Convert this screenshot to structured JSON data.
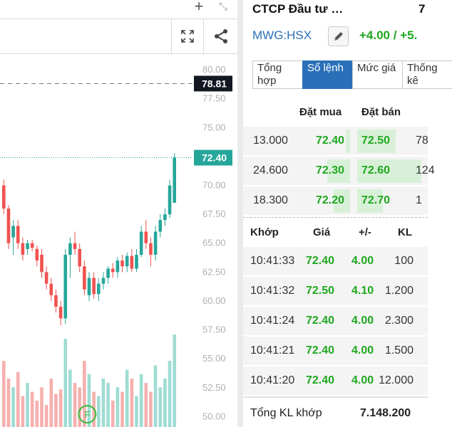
{
  "toolbar": {
    "add_icon": "plus-icon",
    "collapse_icon": "collapse-arrows-icon",
    "fullscreen_icon": "fullscreen-icon",
    "share_icon": "share-icon"
  },
  "chart_data": {
    "type": "candlestick",
    "y_ticks": [
      "80.00",
      "77.50",
      "75.00",
      "72.50",
      "70.00",
      "67.50",
      "65.00",
      "62.50",
      "60.00",
      "57.50",
      "55.00",
      "52.50",
      "50.00"
    ],
    "ylim": [
      49.1,
      81.3
    ],
    "reference_price": {
      "value": 78.81,
      "label": "78.81",
      "style": "dashed"
    },
    "last_price": {
      "value": 72.4,
      "label": "72.40",
      "style": "dotted",
      "color": "#26a69a"
    },
    "up_color": "#26a69a",
    "down_color": "#ef5350",
    "candles": [
      {
        "o": 70.0,
        "h": 70.5,
        "l": 67.5,
        "c": 68.0
      },
      {
        "o": 68.0,
        "h": 68.3,
        "l": 64.5,
        "c": 65.0
      },
      {
        "o": 65.5,
        "h": 67.0,
        "l": 64.0,
        "c": 66.5
      },
      {
        "o": 66.5,
        "h": 67.0,
        "l": 64.5,
        "c": 65.0
      },
      {
        "o": 65.0,
        "h": 65.5,
        "l": 63.5,
        "c": 64.0
      },
      {
        "o": 64.5,
        "h": 65.3,
        "l": 64.0,
        "c": 65.0
      },
      {
        "o": 65.0,
        "h": 65.3,
        "l": 64.3,
        "c": 64.6
      },
      {
        "o": 64.5,
        "h": 64.8,
        "l": 63.0,
        "c": 63.5
      },
      {
        "o": 64.0,
        "h": 64.5,
        "l": 62.0,
        "c": 62.5
      },
      {
        "o": 62.5,
        "h": 63.0,
        "l": 61.0,
        "c": 61.5
      },
      {
        "o": 61.5,
        "h": 62.0,
        "l": 60.0,
        "c": 60.5
      },
      {
        "o": 60.5,
        "h": 61.0,
        "l": 59.0,
        "c": 59.5
      },
      {
        "o": 59.5,
        "h": 60.0,
        "l": 57.9,
        "c": 58.5
      },
      {
        "o": 58.5,
        "h": 64.5,
        "l": 58.0,
        "c": 64.0
      },
      {
        "o": 64.0,
        "h": 65.5,
        "l": 62.0,
        "c": 65.0
      },
      {
        "o": 65.0,
        "h": 66.0,
        "l": 64.0,
        "c": 64.5
      },
      {
        "o": 64.5,
        "h": 65.0,
        "l": 62.5,
        "c": 63.0
      },
      {
        "o": 63.0,
        "h": 63.5,
        "l": 60.5,
        "c": 61.0
      },
      {
        "o": 60.5,
        "h": 62.5,
        "l": 60.0,
        "c": 62.0
      },
      {
        "o": 62.0,
        "h": 62.5,
        "l": 60.2,
        "c": 60.6
      },
      {
        "o": 60.6,
        "h": 62.0,
        "l": 60.0,
        "c": 61.5
      },
      {
        "o": 61.5,
        "h": 62.5,
        "l": 61.0,
        "c": 62.0
      },
      {
        "o": 62.0,
        "h": 63.0,
        "l": 61.5,
        "c": 62.8
      },
      {
        "o": 62.8,
        "h": 63.3,
        "l": 62.0,
        "c": 62.5
      },
      {
        "o": 62.5,
        "h": 63.8,
        "l": 62.0,
        "c": 63.5
      },
      {
        "o": 63.5,
        "h": 64.0,
        "l": 62.5,
        "c": 63.0
      },
      {
        "o": 63.0,
        "h": 64.2,
        "l": 62.5,
        "c": 63.9
      },
      {
        "o": 63.9,
        "h": 64.5,
        "l": 62.5,
        "c": 62.8
      },
      {
        "o": 62.8,
        "h": 64.5,
        "l": 62.5,
        "c": 64.0
      },
      {
        "o": 64.0,
        "h": 66.5,
        "l": 63.8,
        "c": 66.0
      },
      {
        "o": 66.0,
        "h": 67.0,
        "l": 64.5,
        "c": 65.0
      },
      {
        "o": 65.0,
        "h": 65.5,
        "l": 63.0,
        "c": 64.0
      },
      {
        "o": 64.0,
        "h": 66.5,
        "l": 63.5,
        "c": 66.0
      },
      {
        "o": 66.0,
        "h": 67.5,
        "l": 65.5,
        "c": 67.0
      },
      {
        "o": 67.0,
        "h": 68.0,
        "l": 66.5,
        "c": 67.5
      },
      {
        "o": 67.5,
        "h": 70.5,
        "l": 67.2,
        "c": 70.0
      },
      {
        "o": 68.5,
        "h": 72.8,
        "l": 68.5,
        "c": 72.4
      }
    ],
    "volume_ticks_note": "",
    "volumes": [
      30,
      22,
      18,
      25,
      14,
      20,
      16,
      12,
      18,
      10,
      22,
      15,
      17,
      40,
      26,
      20,
      18,
      30,
      24,
      16,
      14,
      22,
      20,
      12,
      18,
      16,
      26,
      22,
      14,
      24,
      20,
      16,
      28,
      18,
      22,
      30,
      42
    ],
    "event_marker": {
      "label": "F",
      "candle_index": 17
    }
  },
  "stock": {
    "name": "CTCP Đầu tư …",
    "price_fragment": "7",
    "ticker": "MWG:HSX",
    "edit_icon": "pencil-icon",
    "change": "+4.00 / +5.",
    "up_color": "#1fa81f"
  },
  "tabs": [
    {
      "label": "Tổng hợp",
      "active": false
    },
    {
      "label": "Sổ lệnh",
      "active": true
    },
    {
      "label": "Mức giá",
      "active": false
    },
    {
      "label": "Thống kê",
      "active": false
    }
  ],
  "order_book": {
    "headers": {
      "bid": "Đặt mua",
      "ask": "Đặt bán"
    },
    "rows": [
      {
        "bid_qty": "13.000",
        "bid": "72.40",
        "ask": "72.50",
        "ask_qty": "78",
        "bid_share": 0.1,
        "ask_share": 0.6
      },
      {
        "bid_qty": "24.600",
        "bid": "72.30",
        "ask": "72.60",
        "ask_qty": "124",
        "bid_share": 0.55,
        "ask_share": 1.0
      },
      {
        "bid_qty": "18.300",
        "bid": "72.20",
        "ask": "72.70",
        "ask_qty": "1",
        "bid_share": 0.4,
        "ask_share": 0.4
      }
    ]
  },
  "trades": {
    "headers": {
      "time": "Khớp",
      "price": "Giá",
      "change": "+/-",
      "volume": "KL"
    },
    "rows": [
      {
        "time": "10:41:33",
        "price": "72.40",
        "change": "4.00",
        "volume": "100"
      },
      {
        "time": "10:41:32",
        "price": "72.50",
        "change": "4.10",
        "volume": "1.200"
      },
      {
        "time": "10:41:24",
        "price": "72.40",
        "change": "4.00",
        "volume": "2.300"
      },
      {
        "time": "10:41:21",
        "price": "72.40",
        "change": "4.00",
        "volume": "1.500"
      },
      {
        "time": "10:41:20",
        "price": "72.40",
        "change": "4.00",
        "volume": "12.000"
      }
    ]
  },
  "total": {
    "label": "Tổng KL khớp",
    "value": "7.148.200"
  }
}
